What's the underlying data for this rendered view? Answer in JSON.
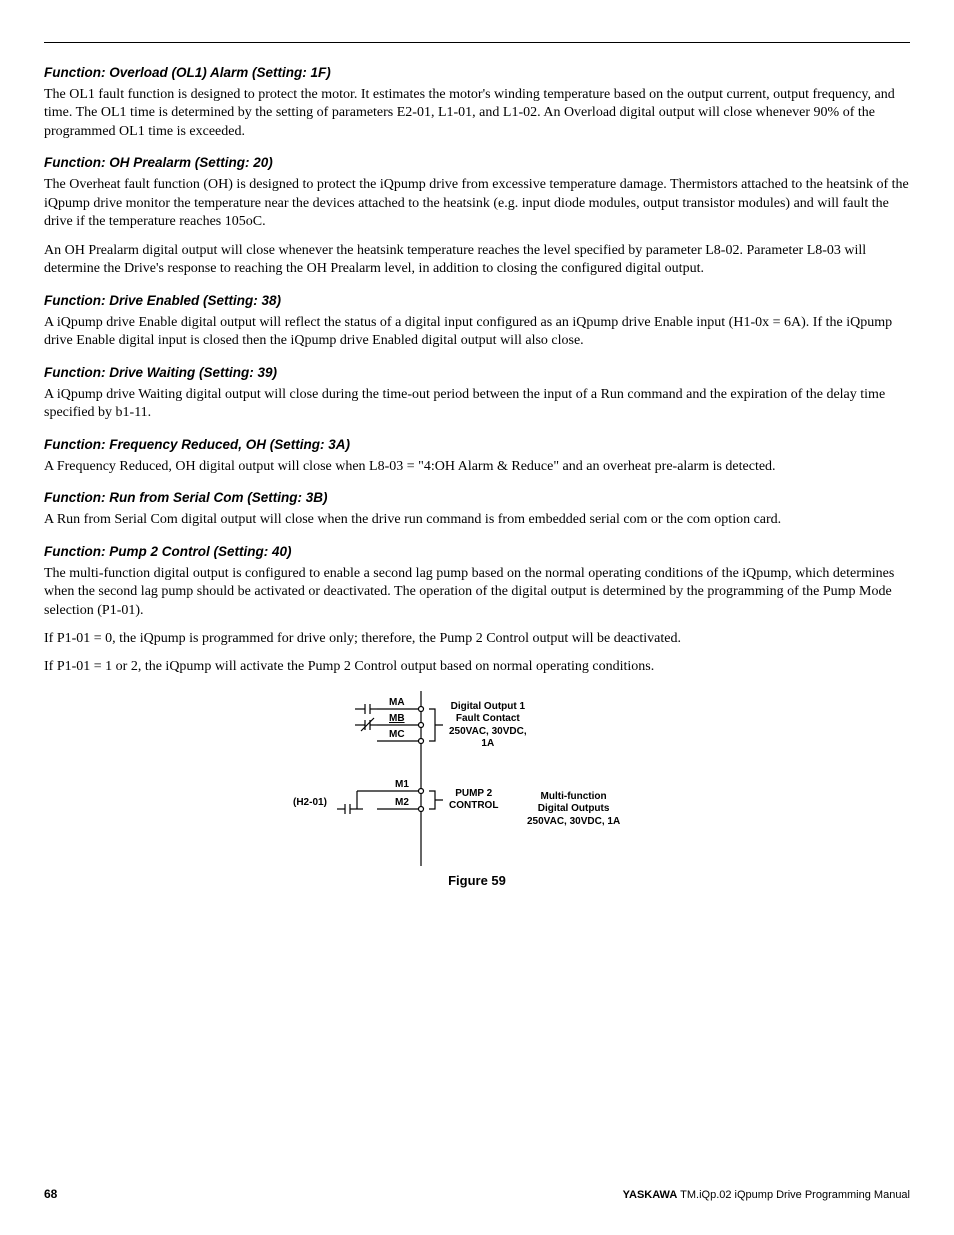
{
  "sections": [
    {
      "heading": "Function: Overload (OL1) Alarm (Setting: 1F)",
      "paragraphs": [
        "The OL1 fault function is designed to protect the motor. It estimates the motor's winding temperature based on the output current, output frequency, and time. The OL1 time is determined by the setting of parameters E2-01, L1-01, and L1-02. An Overload digital output will close whenever 90% of the programmed OL1 time is exceeded."
      ]
    },
    {
      "heading": "Function: OH Prealarm (Setting: 20)",
      "paragraphs": [
        "The Overheat fault function (OH) is designed to protect the iQpump drive from excessive temperature damage. Thermistors attached to the heatsink of the iQpump drive monitor the temperature near the devices attached to the heatsink (e.g. input diode modules, output transistor modules) and will fault the drive if the temperature reaches 105oC.",
        "An OH Prealarm digital output will close whenever the heatsink temperature reaches the level specified by parameter L8-02. Parameter L8-03 will determine the Drive's response to reaching the OH Prealarm level, in addition to closing the configured digital output."
      ]
    },
    {
      "heading": "Function: Drive Enabled (Setting: 38)",
      "paragraphs": [
        "A iQpump drive Enable digital output will reflect the status of a digital input configured as an iQpump drive Enable input (H1-0x = 6A). If the iQpump drive Enable digital input is closed then the iQpump drive Enabled digital output will also close."
      ]
    },
    {
      "heading": "Function: Drive Waiting (Setting: 39)",
      "paragraphs": [
        "A iQpump drive Waiting digital output will close during the time-out period between the input of a Run command and the expiration of the delay time specified by b1-11."
      ]
    },
    {
      "heading": "Function: Frequency Reduced, OH (Setting: 3A)",
      "paragraphs": [
        "A Frequency Reduced, OH digital output will close when L8-03 = \"4:OH Alarm & Reduce\" and an overheat pre-alarm is detected."
      ]
    },
    {
      "heading": "Function: Run from Serial Com (Setting: 3B)",
      "paragraphs": [
        "A Run from Serial Com digital output will close when the drive run command is from embedded serial com or the com option card."
      ]
    },
    {
      "heading": "Function: Pump 2 Control (Setting: 40)",
      "paragraphs": [
        "The multi-function digital output is configured to enable a second lag pump based on the normal operating conditions of the iQpump, which determines when the second lag pump should be activated or deactivated. The operation of the digital output is determined by the programming of the Pump Mode selection (P1-01).",
        "If P1-01 = 0, the iQpump is programmed for drive only; therefore, the Pump 2 Control output will be deactivated.",
        "If P1-01 = 1 or 2, the iQpump will activate the Pump 2 Control output based on normal operating conditions."
      ]
    }
  ],
  "figure": {
    "caption": "Figure 59",
    "labels": {
      "ma": "MA",
      "mb": "MB",
      "mc": "MC",
      "m1": "M1",
      "m2": "M2",
      "h201": "(H2-01)",
      "digout": "Digital Output 1\nFault Contact\n250VAC, 30VDC,\n1A",
      "pump2": "PUMP 2\nCONTROL",
      "multi": "Multi-function\nDigital Outputs\n250VAC, 30VDC, 1A"
    }
  },
  "footer": {
    "page": "68",
    "brand": "YASKAWA",
    "doc": " TM.iQp.02 iQpump Drive Programming Manual"
  }
}
